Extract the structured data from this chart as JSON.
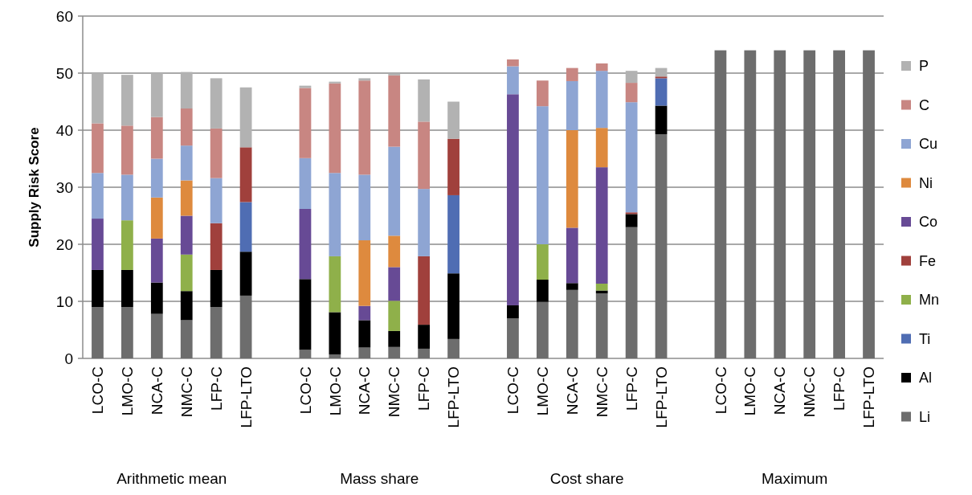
{
  "chart_data": {
    "type": "bar",
    "stacked": true,
    "ylabel": "Supply Risk Score",
    "ylim": [
      0,
      60
    ],
    "yticks": [
      0,
      10,
      20,
      30,
      40,
      50,
      60
    ],
    "grid": "y",
    "legend": "right",
    "categories": [
      "LCO-C",
      "LMO-C",
      "NCA-C",
      "NMC-C",
      "LFP-C",
      "LFP-LTO",
      null,
      "LCO-C",
      "LMO-C",
      "NCA-C",
      "NMC-C",
      "LFP-C",
      "LFP-LTO",
      null,
      "LCO-C",
      "LMO-C",
      "NCA-C",
      "NMC-C",
      "LFP-C",
      "LFP-LTO",
      null,
      "LCO-C",
      "LMO-C",
      "NCA-C",
      "NMC-C",
      "LFP-C",
      "LFP-LTO"
    ],
    "annotations": [
      "Arithmetic mean",
      "Mass share",
      "Cost share",
      "Maximum"
    ],
    "series": [
      {
        "name": "Li",
        "color": "#6d6d6d",
        "values": [
          9,
          9,
          7.8,
          6.7,
          9,
          11,
          null,
          1.5,
          0.7,
          1.9,
          2,
          1.7,
          3.4,
          null,
          7,
          9.9,
          12,
          11.4,
          23,
          39.3,
          null,
          54,
          54,
          54,
          54,
          54,
          54
        ]
      },
      {
        "name": "Al",
        "color": "#000000",
        "values": [
          6.5,
          6.5,
          5.5,
          5.1,
          6.5,
          7.7,
          null,
          12.4,
          7.4,
          4.8,
          2.8,
          4.2,
          11.5,
          null,
          2.3,
          3.9,
          1.2,
          0.5,
          2.3,
          5,
          null,
          null,
          null,
          null,
          null,
          null,
          null
        ]
      },
      {
        "name": "Ti",
        "color": "#4f6db3",
        "values": [
          null,
          null,
          null,
          null,
          null,
          8.7,
          null,
          null,
          null,
          null,
          null,
          null,
          13.7,
          null,
          null,
          null,
          null,
          null,
          null,
          4.8,
          null,
          null,
          null,
          null,
          null,
          null,
          null
        ]
      },
      {
        "name": "Mn",
        "color": "#8fb04a",
        "values": [
          null,
          8.7,
          null,
          6.4,
          null,
          null,
          null,
          null,
          9.8,
          null,
          5.3,
          null,
          null,
          null,
          null,
          6.2,
          null,
          1.2,
          null,
          null,
          null,
          null,
          null,
          null,
          null,
          null,
          null
        ]
      },
      {
        "name": "Fe",
        "color": "#a0403c",
        "values": [
          null,
          null,
          null,
          null,
          8.2,
          9.6,
          null,
          null,
          null,
          null,
          null,
          12,
          9.9,
          null,
          null,
          null,
          null,
          null,
          0.3,
          0.3,
          null,
          null,
          null,
          null,
          null,
          null,
          null
        ]
      },
      {
        "name": "Co",
        "color": "#674a95",
        "values": [
          9,
          null,
          7.7,
          6.8,
          null,
          null,
          null,
          12.3,
          null,
          2.5,
          5.9,
          null,
          null,
          null,
          37,
          null,
          9.7,
          20.4,
          null,
          null,
          null,
          null,
          null,
          null,
          null,
          null,
          null
        ]
      },
      {
        "name": "Ni",
        "color": "#de8a3e",
        "values": [
          null,
          null,
          7.2,
          6.2,
          null,
          null,
          null,
          null,
          null,
          11.5,
          5.5,
          null,
          null,
          null,
          null,
          null,
          17.1,
          6.9,
          null,
          null,
          null,
          null,
          null,
          null,
          null,
          null,
          null
        ]
      },
      {
        "name": "Cu",
        "color": "#8ea5d3",
        "values": [
          8,
          8,
          6.8,
          6.1,
          7.9,
          null,
          null,
          8.9,
          14.6,
          11.5,
          15.6,
          11.8,
          null,
          null,
          4.9,
          24.2,
          8.6,
          10,
          19.3,
          null,
          null,
          null,
          null,
          null,
          null,
          null,
          null
        ]
      },
      {
        "name": "C",
        "color": "#c88682",
        "values": [
          8.7,
          8.6,
          7.3,
          6.5,
          8.7,
          null,
          null,
          12.3,
          15.7,
          16.5,
          12.5,
          11.8,
          null,
          null,
          1.2,
          4.5,
          2.3,
          1.3,
          3.4,
          null,
          null,
          null,
          null,
          null,
          null,
          null,
          null
        ]
      },
      {
        "name": "P",
        "color": "#b2b2b2",
        "values": [
          8.8,
          8.9,
          7.7,
          6.4,
          8.8,
          10.5,
          null,
          0.4,
          0.3,
          0.4,
          0.3,
          7.4,
          6.5,
          null,
          null,
          null,
          null,
          null,
          2.1,
          1.5,
          null,
          null,
          null,
          null,
          null,
          null,
          null
        ]
      }
    ]
  }
}
